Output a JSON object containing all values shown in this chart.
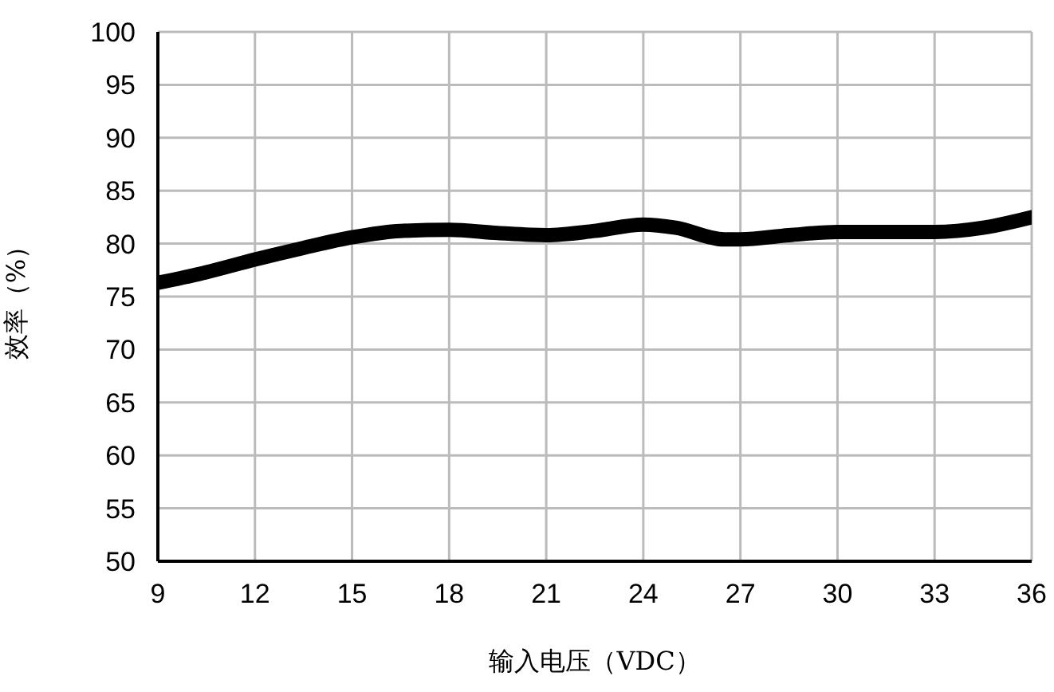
{
  "chart_data": {
    "type": "line",
    "xlabel": "输入电压（VDC）",
    "ylabel": "效率（%）",
    "x": [
      9,
      10.5,
      12,
      13.5,
      15,
      16.5,
      18,
      19.5,
      21,
      22.5,
      24,
      25,
      26.5,
      27,
      28.5,
      30,
      31.5,
      33,
      34.5,
      36
    ],
    "series": [
      {
        "color": "#000000",
        "values": [
          76.3,
          77.3,
          78.5,
          79.6,
          80.6,
          81.2,
          81.3,
          81.0,
          80.8,
          81.2,
          81.8,
          81.5,
          80.4,
          80.4,
          80.8,
          81.1,
          81.1,
          81.1,
          81.5,
          82.5
        ]
      }
    ],
    "xlim": [
      9,
      36
    ],
    "xticks": [
      9,
      12,
      15,
      18,
      21,
      24,
      27,
      30,
      33,
      36
    ],
    "ylim": [
      50,
      100
    ],
    "yticks": [
      50,
      55,
      60,
      65,
      70,
      75,
      80,
      85,
      90,
      95,
      100
    ],
    "grid": true,
    "legend": false,
    "marker": "none",
    "line_style": "solid"
  }
}
